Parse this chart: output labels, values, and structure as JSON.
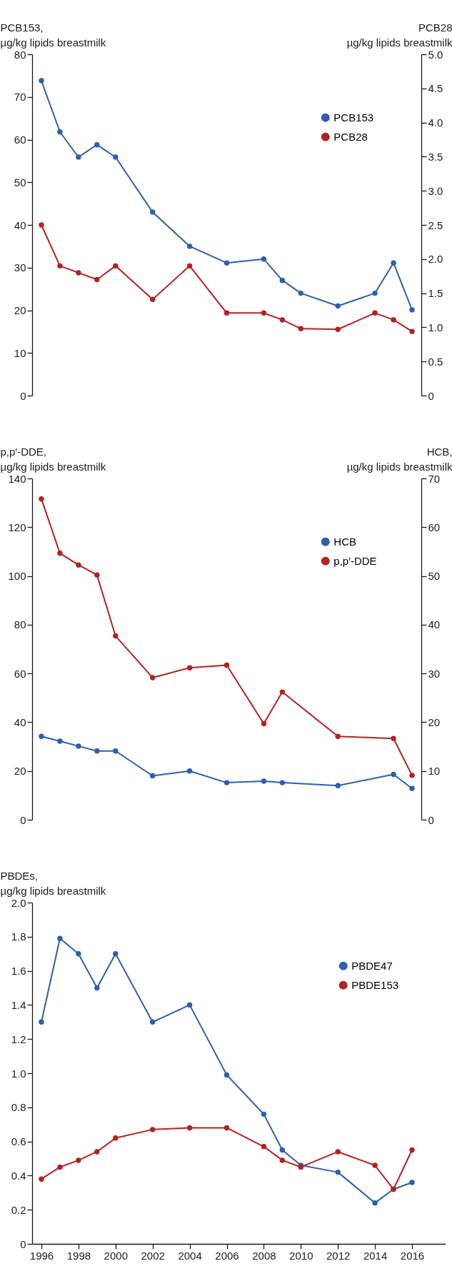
{
  "chart_data": [
    {
      "type": "line",
      "ylabel": "PCB153,\nµg/kg lipids breastmilk",
      "y2label": "PCB28\nµg/kg lipids breastmilk",
      "x": [
        1996,
        1997,
        1998,
        1999,
        2000,
        2002,
        2004,
        2006,
        2008,
        2009,
        2010,
        2012,
        2014,
        2015,
        2016
      ],
      "series": [
        {
          "name": "PCB153",
          "color": "#2e5fac",
          "values": [
            73.8,
            61.8,
            55.9,
            58.8,
            55.9,
            43.0,
            35.0,
            31.1,
            32.0,
            27.0,
            24.0,
            21.0,
            24.0,
            31.1,
            20.1
          ]
        },
        {
          "name": "PCB28",
          "color": "#b22222",
          "axis": "y2",
          "values": [
            2.5,
            1.9,
            1.8,
            1.7,
            1.9,
            1.41,
            1.9,
            1.21,
            1.21,
            1.11,
            0.98,
            0.97,
            1.21,
            1.11,
            0.94
          ]
        }
      ],
      "xlim": [
        1995.5,
        2016.5
      ],
      "xticks": [
        1996,
        1998,
        2000,
        2002,
        2004,
        2006,
        2008,
        2010,
        2012,
        2014,
        2016
      ],
      "ylim": [
        0,
        80
      ],
      "yticks": [
        0,
        10,
        20,
        30,
        40,
        50,
        60,
        70,
        80
      ],
      "y2lim": [
        0,
        5
      ],
      "y2ticks": [
        0,
        0.5,
        {
          "value": 1,
          "label": "1.0"
        },
        1.5,
        {
          "value": 2,
          "label": "2.0"
        },
        2.5,
        {
          "value": 3,
          "label": "3.0"
        },
        3.5,
        {
          "value": 4,
          "label": "4.0"
        },
        4.5,
        {
          "value": 5,
          "label": "5.0"
        }
      ],
      "tick_labels": "y",
      "grid": false,
      "legend": "top right",
      "marker": "circle",
      "line_style": "solid"
    },
    {
      "type": "line",
      "ylabel": "p,p′-DDE,\nµg/kg lipids breastmilk",
      "y2label": "HCB,\nµg/kg lipids breastmilk",
      "series": [
        {
          "name": "HCB",
          "color": "#2e5fac",
          "axis": "y2",
          "x": [
            1996,
            1997,
            1998,
            1999,
            2000,
            2002,
            2004,
            2006,
            2008,
            2009,
            2012,
            2015,
            2016
          ],
          "values": [
            17.1,
            16.1,
            15.1,
            14.1,
            14.1,
            9.0,
            10.0,
            7.6,
            7.9,
            7.6,
            7.0,
            9.3,
            6.4
          ]
        },
        {
          "name": "p,p′-DDE",
          "color": "#b22222",
          "x": [
            1996,
            1997,
            1998,
            1999,
            2000,
            2002,
            2004,
            2006,
            2008,
            2009,
            2012,
            2015,
            2016
          ],
          "values": [
            131.6,
            109.3,
            104.5,
            100.4,
            75.4,
            58.3,
            62.3,
            63.4,
            39.4,
            52.4,
            34.2,
            33.3,
            18.2
          ]
        }
      ],
      "xlim": [
        1995.5,
        2016.5
      ],
      "xticks": [
        1996,
        1998,
        2000,
        2002,
        2004,
        2006,
        2008,
        2010,
        2012,
        2014,
        2016
      ],
      "ylim": [
        0,
        140
      ],
      "yticks": [
        0,
        20,
        40,
        60,
        80,
        100,
        120,
        140
      ],
      "y2lim": [
        0,
        70
      ],
      "y2ticks": [
        0,
        10,
        20,
        30,
        40,
        50,
        60,
        70
      ],
      "tick_labels": "y",
      "grid": false,
      "legend": "top right",
      "marker": "circle",
      "line_style": "solid"
    },
    {
      "type": "line",
      "ylabel": "PBDEs,\nµg/kg lipids breastmilk",
      "x": [
        1996,
        1997,
        1998,
        1999,
        2000,
        2002,
        2004,
        2006,
        2008,
        2009,
        2010,
        2012,
        2014,
        2015,
        2016
      ],
      "series": [
        {
          "name": "PBDE47",
          "color": "#2e5fac",
          "values": [
            1.3,
            1.79,
            1.7,
            1.5,
            1.7,
            1.3,
            1.4,
            0.99,
            0.76,
            0.55,
            0.46,
            0.42,
            0.24,
            0.32,
            0.36
          ]
        },
        {
          "name": "PBDE153",
          "color": "#b22222",
          "values": [
            0.38,
            0.45,
            0.49,
            0.54,
            0.62,
            0.67,
            0.68,
            0.68,
            0.57,
            0.49,
            0.45,
            0.54,
            0.46,
            0.32,
            0.55
          ]
        }
      ],
      "xlim": [
        1995.5,
        2017.8
      ],
      "xticks": [
        1996,
        1998,
        2000,
        2002,
        2004,
        2006,
        2008,
        2010,
        2012,
        2014,
        2016
      ],
      "ylim": [
        0,
        2
      ],
      "yticks": [
        0,
        0.2,
        0.4,
        0.6,
        0.8,
        {
          "value": 1,
          "label": "1.0"
        },
        1.2,
        1.4,
        1.6,
        1.8,
        {
          "value": 2,
          "label": "2.0"
        }
      ],
      "grid": false,
      "legend": "top right",
      "marker": "circle",
      "line_style": "solid"
    }
  ]
}
